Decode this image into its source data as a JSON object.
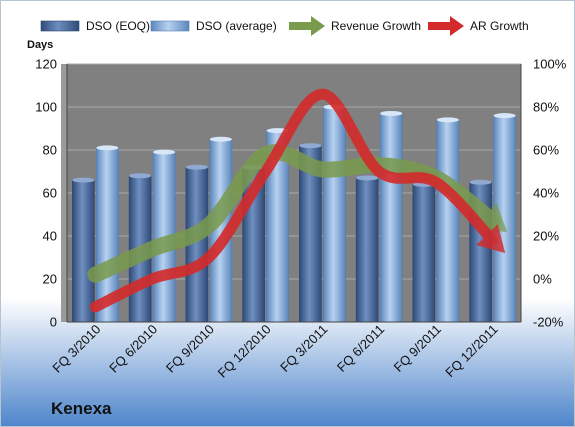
{
  "colors": {
    "dso_eoq": "#4f6fa0",
    "dso_average": "#7fa7d6",
    "revenue_growth": "#7a9a4c",
    "ar_growth": "#d42a2a",
    "plot_background": "#808080",
    "background_top": "#ffffff",
    "background_bottom": "#4f86cc"
  },
  "chart_data": {
    "type": "bar",
    "title": "",
    "company": "Kenexa",
    "xlabel": "",
    "ylabel": "Days",
    "ylim": [
      0,
      120
    ],
    "y_ticks": [
      "0",
      "20",
      "40",
      "60",
      "80",
      "100",
      "120"
    ],
    "y2lim": [
      -20,
      100
    ],
    "y2_ticks": [
      "-20%",
      "0%",
      "20%",
      "40%",
      "60%",
      "80%",
      "100%"
    ],
    "categories": [
      "FQ 3/2010",
      "FQ 6/2010",
      "FQ 9/2010",
      "FQ 12/2010",
      "FQ 3/2011",
      "FQ 6/2011",
      "FQ 9/2011",
      "FQ 12/2011"
    ],
    "legend_position": "top",
    "series": [
      {
        "name": "DSO (EOQ)",
        "type": "bar",
        "axis": "left",
        "values": [
          66,
          68,
          72,
          72,
          82,
          67,
          64,
          65
        ]
      },
      {
        "name": "DSO (average)",
        "type": "bar",
        "axis": "left",
        "values": [
          81,
          79,
          85,
          89,
          100,
          97,
          94,
          96
        ]
      },
      {
        "name": "Revenue Growth",
        "type": "line",
        "axis": "right",
        "unit": "%",
        "values": [
          2,
          14,
          25,
          58,
          51,
          53,
          47,
          27
        ]
      },
      {
        "name": "AR Growth",
        "type": "line",
        "axis": "right",
        "unit": "%",
        "values": [
          -13,
          0,
          10,
          50,
          86,
          50,
          45,
          18
        ]
      }
    ]
  }
}
